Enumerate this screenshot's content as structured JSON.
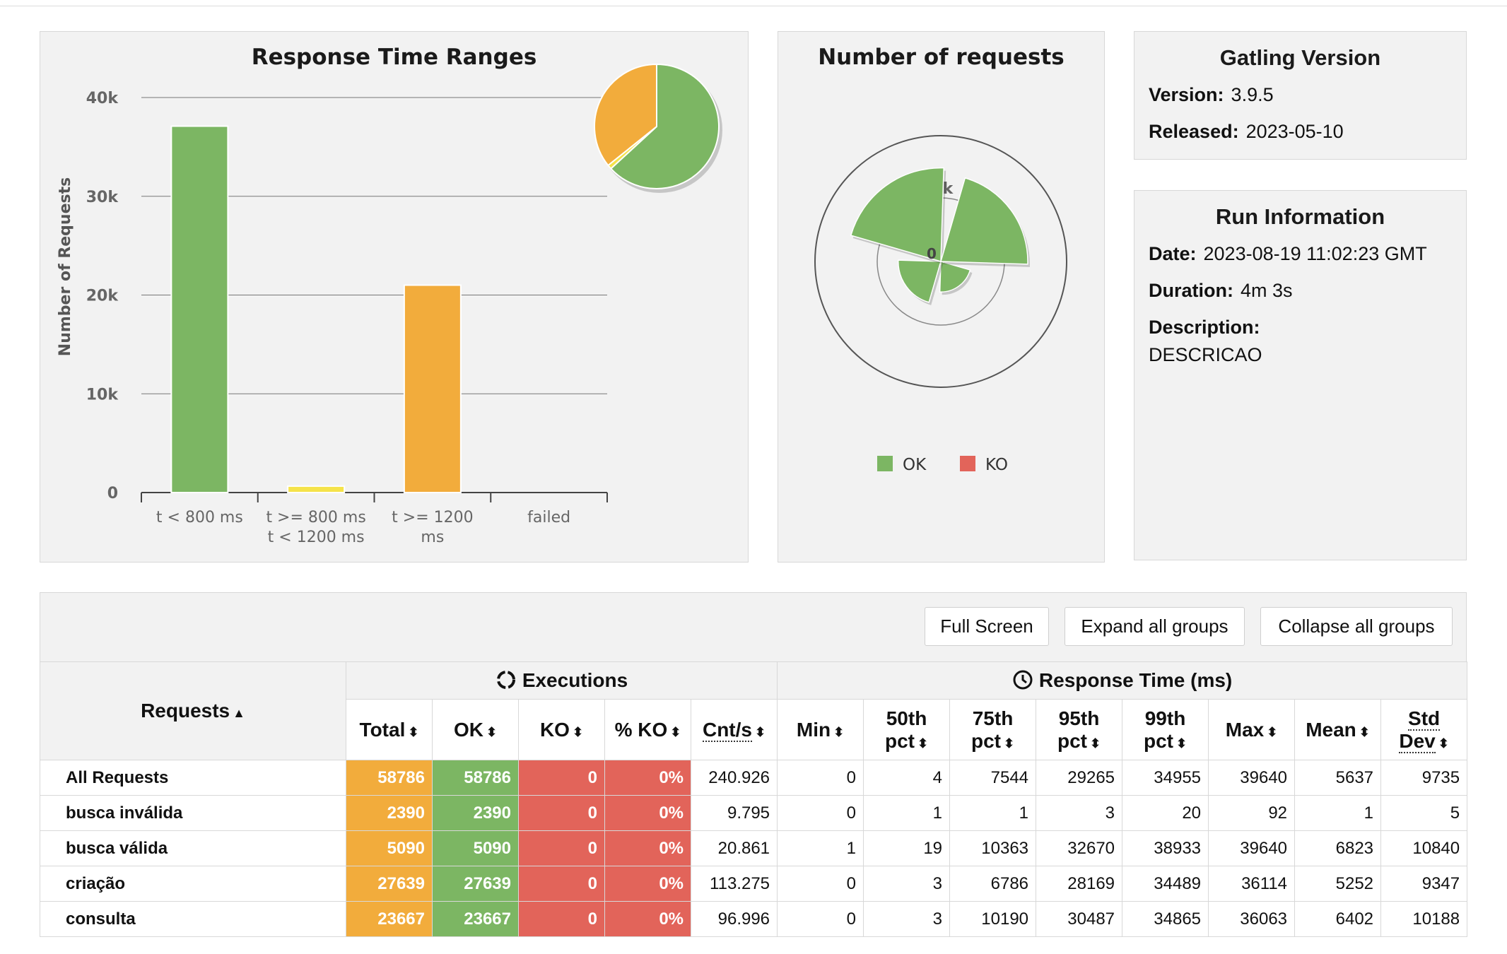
{
  "range_chart": {
    "title": "Response Time Ranges",
    "ylabel": "Number of Requests",
    "yticks": [
      "0",
      "10k",
      "20k",
      "30k",
      "40k"
    ],
    "colors": {
      "green": "#7cb663",
      "yellow": "#f5e34a",
      "orange": "#f2ac3c"
    }
  },
  "requests_chart": {
    "title": "Number of requests",
    "tick_outer": "25k",
    "tick_center": "0",
    "legend": [
      {
        "label": "OK",
        "color": "#7cb663"
      },
      {
        "label": "KO",
        "color": "#e2645a"
      }
    ]
  },
  "chart_data": [
    {
      "type": "bar",
      "title": "Response Time Ranges",
      "ylabel": "Number of Requests",
      "ylim": [
        0,
        40000
      ],
      "categories": [
        [
          "t < 800 ms"
        ],
        [
          "t >= 800 ms",
          "t < 1200 ms"
        ],
        [
          "t >= 1200",
          "ms"
        ],
        [
          "failed"
        ]
      ],
      "values": [
        37100,
        650,
        21000,
        0
      ],
      "colors": [
        "#7cb663",
        "#f5e34a",
        "#f2ac3c",
        "#e2645a"
      ],
      "pie": [
        {
          "value": 37100,
          "color": "#7cb663"
        },
        {
          "value": 650,
          "color": "#f5e34a"
        },
        {
          "value": 21000,
          "color": "#f2ac3c"
        }
      ]
    },
    {
      "type": "pie",
      "title": "Number of requests",
      "categories": [
        "busca inválida",
        "busca válida",
        "criação",
        "consulta"
      ],
      "values": [
        2390,
        5090,
        27639,
        23667
      ],
      "series": [
        {
          "name": "OK",
          "color": "#7cb663"
        },
        {
          "name": "KO",
          "color": "#e2645a"
        }
      ]
    }
  ],
  "gatling": {
    "title": "Gatling Version",
    "version_label": "Version:",
    "version": "3.9.5",
    "released_label": "Released:",
    "released": "2023-05-10"
  },
  "run": {
    "title": "Run Information",
    "date_label": "Date:",
    "date": "2023-08-19 11:02:23 GMT",
    "duration_label": "Duration:",
    "duration": "4m 3s",
    "description_label": "Description:",
    "description": "DESCRICAO"
  },
  "buttons": {
    "full_screen": "Full Screen",
    "expand": "Expand all groups",
    "collapse": "Collapse all groups"
  },
  "table": {
    "requests_header": "Requests",
    "executions_header": "Executions",
    "response_header": "Response Time (ms)",
    "col_total": "Total",
    "col_ok": "OK",
    "col_ko": "KO",
    "col_pko": "% KO",
    "col_cnts": "Cnt/s",
    "col_min": "Min",
    "col_p50_a": "50th",
    "col_p75_a": "75th",
    "col_p95_a": "95th",
    "col_p99_a": "99th",
    "col_pct": "pct",
    "col_max": "Max",
    "col_mean": "Mean",
    "col_std_a": "Std",
    "col_std_b": "Dev",
    "rows": [
      {
        "name": "All Requests",
        "total": "58786",
        "ok": "58786",
        "ko": "0",
        "pko": "0%",
        "cnts": "240.926",
        "min": "0",
        "p50": "4",
        "p75": "7544",
        "p95": "29265",
        "p99": "34955",
        "max": "39640",
        "mean": "5637",
        "std": "9735"
      },
      {
        "name": "busca inválida",
        "total": "2390",
        "ok": "2390",
        "ko": "0",
        "pko": "0%",
        "cnts": "9.795",
        "min": "0",
        "p50": "1",
        "p75": "1",
        "p95": "3",
        "p99": "20",
        "max": "92",
        "mean": "1",
        "std": "5"
      },
      {
        "name": "busca válida",
        "total": "5090",
        "ok": "5090",
        "ko": "0",
        "pko": "0%",
        "cnts": "20.861",
        "min": "1",
        "p50": "19",
        "p75": "10363",
        "p95": "32670",
        "p99": "38933",
        "max": "39640",
        "mean": "6823",
        "std": "10840"
      },
      {
        "name": "criação",
        "total": "27639",
        "ok": "27639",
        "ko": "0",
        "pko": "0%",
        "cnts": "113.275",
        "min": "0",
        "p50": "3",
        "p75": "6786",
        "p95": "28169",
        "p99": "34489",
        "max": "36114",
        "mean": "5252",
        "std": "9347"
      },
      {
        "name": "consulta",
        "total": "23667",
        "ok": "23667",
        "ko": "0",
        "pko": "0%",
        "cnts": "96.996",
        "min": "0",
        "p50": "3",
        "p75": "10190",
        "p95": "30487",
        "p99": "34865",
        "max": "36063",
        "mean": "6402",
        "std": "10188"
      }
    ]
  }
}
